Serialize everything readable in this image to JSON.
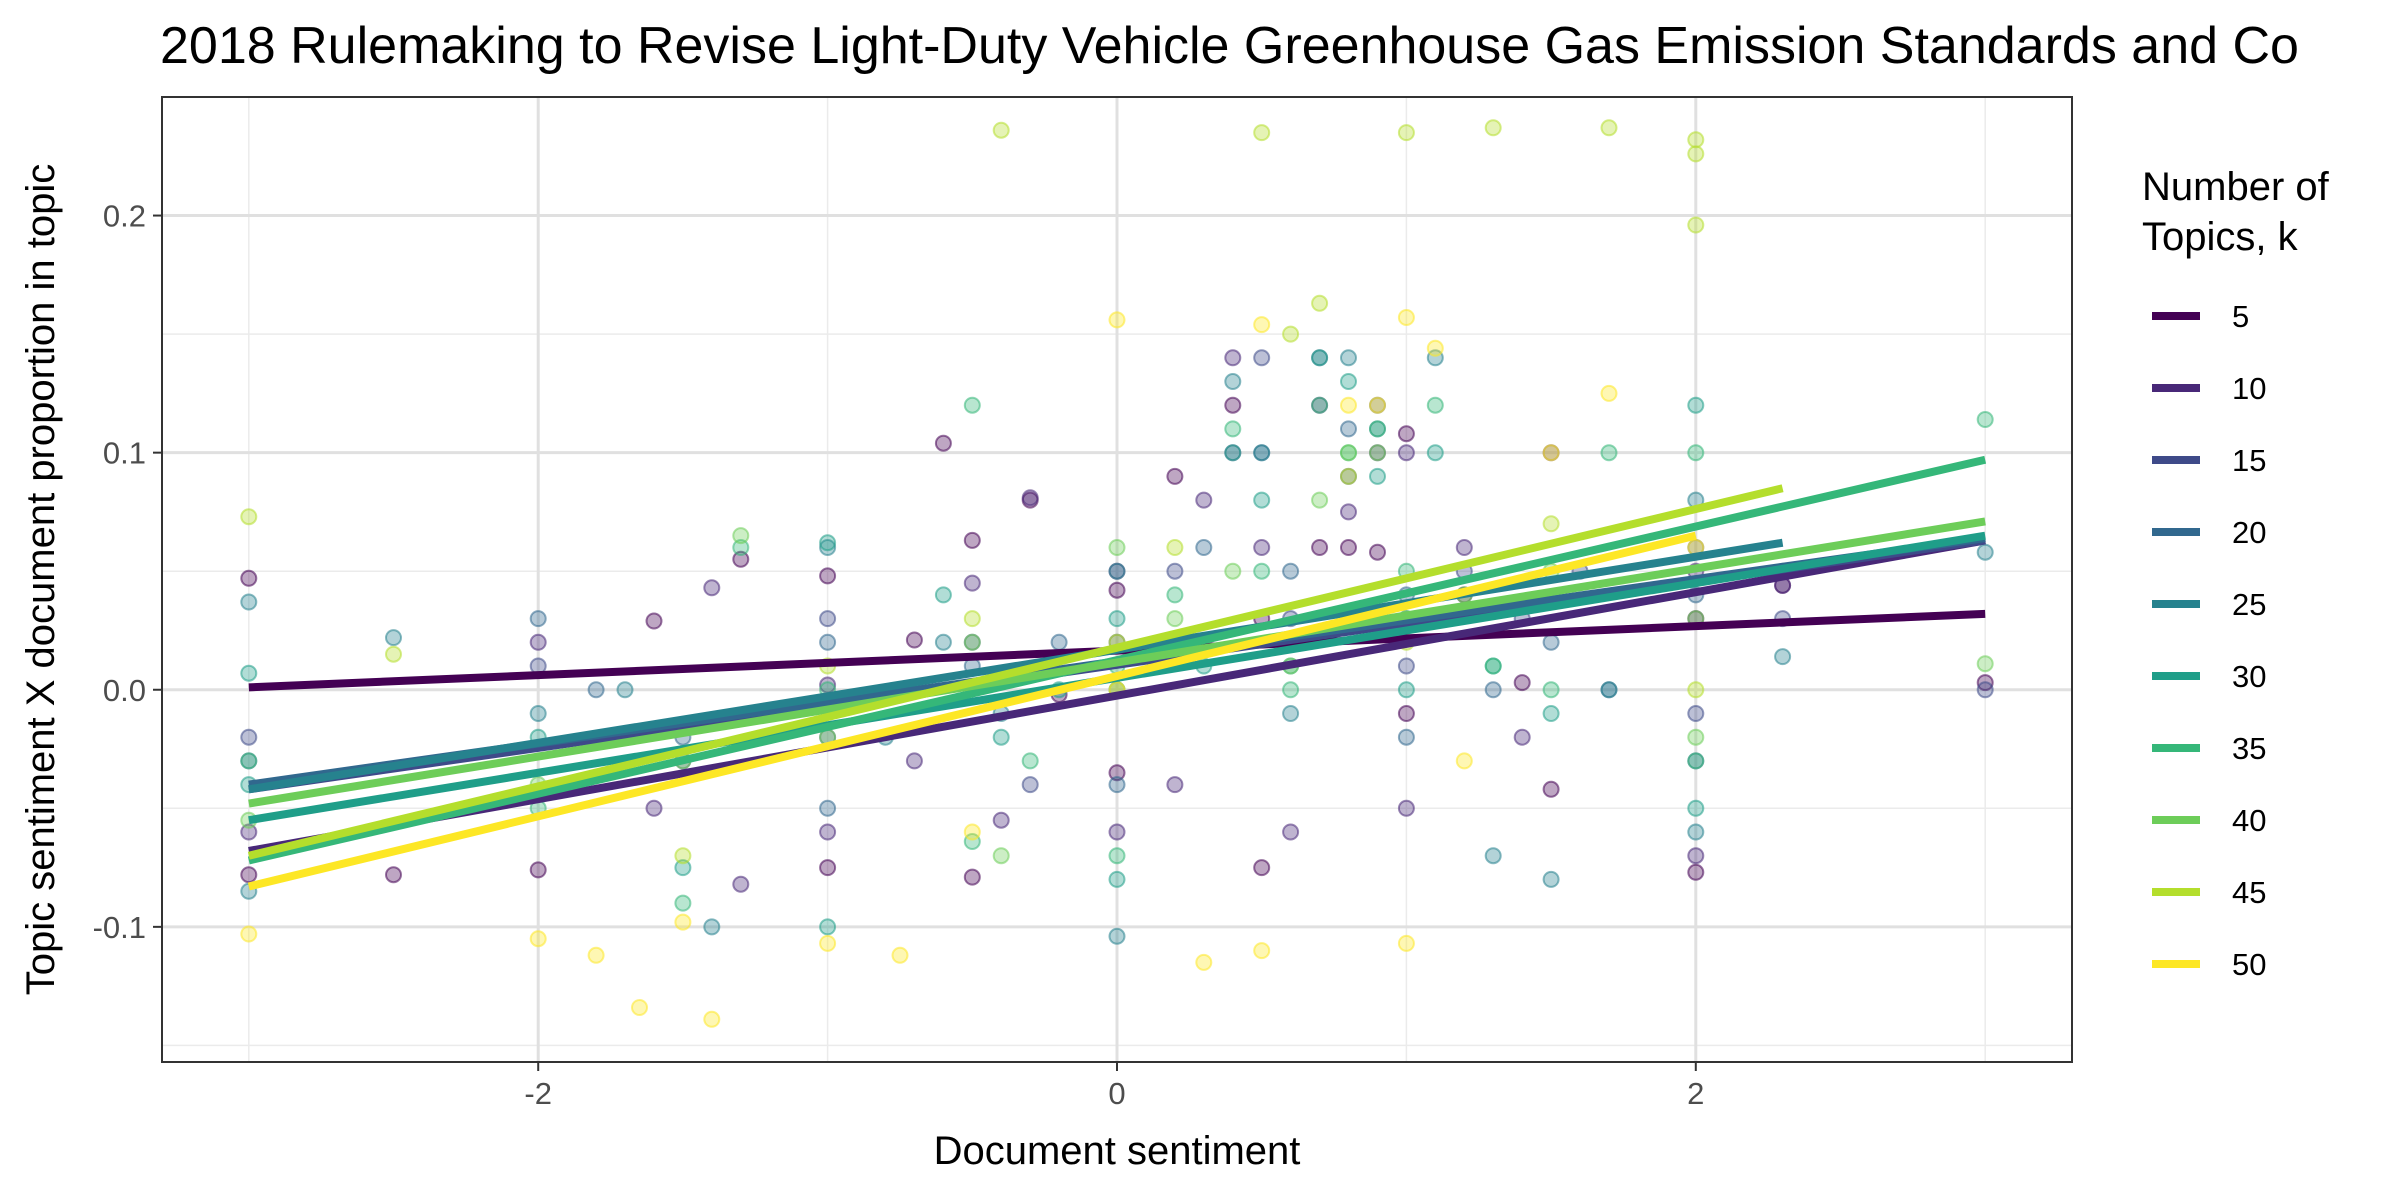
{
  "chart_data": {
    "type": "scatter",
    "title": "2018 Rulemaking to Revise Light-Duty Vehicle Greenhouse Gas Emission Standards and Co",
    "xlabel": "Document sentiment",
    "ylabel": "Topic sentiment X document proportion in topic",
    "xlim": [
      -3.3,
      3.3
    ],
    "ylim": [
      -0.157,
      0.25
    ],
    "x_ticks": [
      -2,
      0,
      2
    ],
    "x_tick_labels": [
      "-2",
      "0",
      "2"
    ],
    "y_ticks": [
      -0.1,
      0.0,
      0.1,
      0.2
    ],
    "y_tick_labels": [
      "-0.1",
      "0.0",
      "0.1",
      "0.2"
    ],
    "grid": true,
    "legend": {
      "title_lines": [
        "Number of",
        "Topics, k"
      ],
      "placement": "right"
    },
    "series": [
      {
        "name": "5",
        "color": "#440154",
        "fit": {
          "x": [
            -3.0,
            3.0
          ],
          "y": [
            0.001,
            0.032
          ]
        },
        "points": [
          [
            -3,
            0.047
          ],
          [
            -3,
            -0.078
          ],
          [
            -2.5,
            -0.078
          ],
          [
            -2,
            -0.076
          ],
          [
            -1.6,
            0.029
          ],
          [
            -1.3,
            0.055
          ],
          [
            -1,
            0.048
          ],
          [
            -1,
            -0.075
          ],
          [
            -0.7,
            0.021
          ],
          [
            -0.6,
            0.104
          ],
          [
            -0.5,
            0.063
          ],
          [
            -0.5,
            -0.079
          ],
          [
            -0.3,
            0.08
          ],
          [
            -0.2,
            -0.002
          ],
          [
            0,
            0.042
          ],
          [
            0,
            -0.035
          ],
          [
            0.2,
            0.09
          ],
          [
            0.4,
            0.12
          ],
          [
            0.5,
            0.03
          ],
          [
            0.5,
            -0.075
          ],
          [
            0.7,
            0.06
          ],
          [
            0.8,
            0.06
          ],
          [
            0.9,
            0.058
          ],
          [
            1,
            0.108
          ],
          [
            1,
            -0.01
          ],
          [
            1.2,
            0.04
          ],
          [
            1.4,
            0.003
          ],
          [
            1.5,
            -0.042
          ],
          [
            2,
            0.03
          ],
          [
            2,
            -0.077
          ],
          [
            2.3,
            0.044
          ],
          [
            3,
            0.003
          ]
        ]
      },
      {
        "name": "10",
        "color": "#482878",
        "fit": {
          "x": [
            -3.0,
            3.0
          ],
          "y": [
            -0.068,
            0.063
          ]
        },
        "points": [
          [
            -3,
            -0.06
          ],
          [
            -2,
            0.02
          ],
          [
            -1.6,
            -0.05
          ],
          [
            -1.4,
            0.043
          ],
          [
            -1.3,
            -0.082
          ],
          [
            -1,
            0.002
          ],
          [
            -1,
            -0.06
          ],
          [
            -0.7,
            -0.03
          ],
          [
            -0.5,
            0.045
          ],
          [
            -0.4,
            -0.055
          ],
          [
            -0.3,
            0.081
          ],
          [
            0,
            0.05
          ],
          [
            0,
            -0.06
          ],
          [
            0.2,
            -0.04
          ],
          [
            0.3,
            0.08
          ],
          [
            0.4,
            0.14
          ],
          [
            0.5,
            0.06
          ],
          [
            0.6,
            -0.06
          ],
          [
            0.7,
            0.12
          ],
          [
            0.8,
            0.075
          ],
          [
            0.9,
            0.1
          ],
          [
            1,
            0.1
          ],
          [
            1,
            -0.05
          ],
          [
            1.2,
            0.06
          ],
          [
            1.4,
            -0.02
          ],
          [
            1.5,
            0.1
          ],
          [
            2,
            0.05
          ],
          [
            2,
            -0.07
          ],
          [
            2.3,
            0.044
          ]
        ]
      },
      {
        "name": "15",
        "color": "#3E4A89",
        "fit": {
          "x": [
            -3.0,
            3.0
          ],
          "y": [
            -0.042,
            0.063
          ]
        },
        "points": [
          [
            -3,
            -0.02
          ],
          [
            -2,
            0.01
          ],
          [
            -1.5,
            -0.03
          ],
          [
            -1,
            0.03
          ],
          [
            -1,
            -0.02
          ],
          [
            -0.5,
            0.02
          ],
          [
            -0.3,
            -0.04
          ],
          [
            0,
            0.02
          ],
          [
            0.2,
            0.05
          ],
          [
            0.4,
            0.1
          ],
          [
            0.5,
            0.14
          ],
          [
            0.6,
            0.03
          ],
          [
            0.8,
            0.09
          ],
          [
            0.9,
            0.12
          ],
          [
            1,
            0.01
          ],
          [
            1.2,
            0.05
          ],
          [
            1.4,
            0.03
          ],
          [
            1.6,
            0.05
          ],
          [
            2,
            0.06
          ],
          [
            2,
            -0.01
          ],
          [
            2.3,
            0.03
          ],
          [
            3,
            0.0
          ]
        ]
      },
      {
        "name": "20",
        "color": "#31688E",
        "fit": {
          "x": [
            -3.0,
            3.0
          ],
          "y": [
            -0.04,
            0.064
          ]
        },
        "points": [
          [
            -3,
            -0.03
          ],
          [
            -2,
            0.03
          ],
          [
            -1.8,
            0.0
          ],
          [
            -1.5,
            -0.02
          ],
          [
            -1,
            0.02
          ],
          [
            -1,
            -0.05
          ],
          [
            -0.5,
            0.01
          ],
          [
            -0.2,
            0.02
          ],
          [
            0,
            0.0
          ],
          [
            0,
            -0.04
          ],
          [
            0.3,
            0.06
          ],
          [
            0.5,
            0.1
          ],
          [
            0.6,
            0.05
          ],
          [
            0.7,
            0.14
          ],
          [
            0.8,
            0.11
          ],
          [
            1,
            0.04
          ],
          [
            1,
            -0.02
          ],
          [
            1.3,
            0.0
          ],
          [
            1.5,
            0.02
          ],
          [
            1.7,
            0.0
          ],
          [
            2,
            0.04
          ],
          [
            2,
            -0.03
          ],
          [
            2.3,
            0.05
          ]
        ]
      },
      {
        "name": "25",
        "color": "#26828E",
        "fit": {
          "x": [
            -3.0,
            2.3
          ],
          "y": [
            -0.042,
            0.062
          ]
        },
        "points": [
          [
            -3,
            0.037
          ],
          [
            -3,
            -0.085
          ],
          [
            -2.5,
            0.022
          ],
          [
            -2,
            -0.01
          ],
          [
            -1.7,
            0.0
          ],
          [
            -1.4,
            -0.1
          ],
          [
            -1,
            0.06
          ],
          [
            -0.8,
            -0.02
          ],
          [
            -0.6,
            0.02
          ],
          [
            -0.4,
            -0.01
          ],
          [
            0,
            0.05
          ],
          [
            0,
            -0.104
          ],
          [
            0.2,
            0.02
          ],
          [
            0.4,
            0.13
          ],
          [
            0.5,
            0.1
          ],
          [
            0.6,
            -0.01
          ],
          [
            0.8,
            0.14
          ],
          [
            0.9,
            0.11
          ],
          [
            1,
            0.03
          ],
          [
            1.1,
            0.14
          ],
          [
            1.3,
            -0.07
          ],
          [
            1.5,
            -0.08
          ],
          [
            1.7,
            0.0
          ],
          [
            2,
            0.08
          ],
          [
            2,
            -0.06
          ],
          [
            2.3,
            0.014
          ],
          [
            3,
            0.058
          ]
        ]
      },
      {
        "name": "30",
        "color": "#1F9E89",
        "fit": {
          "x": [
            -3.0,
            3.0
          ],
          "y": [
            -0.055,
            0.065
          ]
        },
        "points": [
          [
            -3,
            0.007
          ],
          [
            -3,
            -0.04
          ],
          [
            -2,
            -0.02
          ],
          [
            -1.5,
            -0.075
          ],
          [
            -1,
            0.062
          ],
          [
            -1,
            -0.1
          ],
          [
            -0.6,
            0.04
          ],
          [
            -0.4,
            -0.02
          ],
          [
            -0.2,
            0.0
          ],
          [
            0,
            0.03
          ],
          [
            0,
            -0.08
          ],
          [
            0.3,
            0.01
          ],
          [
            0.4,
            0.1
          ],
          [
            0.5,
            0.08
          ],
          [
            0.6,
            0.01
          ],
          [
            0.7,
            0.14
          ],
          [
            0.8,
            0.13
          ],
          [
            0.9,
            0.09
          ],
          [
            1,
            0.0
          ],
          [
            1.1,
            0.1
          ],
          [
            1.3,
            0.01
          ],
          [
            1.5,
            -0.01
          ],
          [
            2,
            0.12
          ],
          [
            2,
            -0.05
          ]
        ]
      },
      {
        "name": "35",
        "color": "#35B779",
        "fit": {
          "x": [
            -3.0,
            3.0
          ],
          "y": [
            -0.072,
            0.097
          ]
        },
        "points": [
          [
            -3,
            -0.03
          ],
          [
            -2,
            -0.05
          ],
          [
            -1.5,
            -0.09
          ],
          [
            -1.3,
            0.06
          ],
          [
            -1,
            0.0
          ],
          [
            -0.5,
            -0.064
          ],
          [
            -0.5,
            0.12
          ],
          [
            -0.3,
            -0.03
          ],
          [
            0,
            0.01
          ],
          [
            0,
            -0.07
          ],
          [
            0.2,
            0.04
          ],
          [
            0.4,
            0.11
          ],
          [
            0.5,
            0.05
          ],
          [
            0.6,
            0.0
          ],
          [
            0.7,
            0.12
          ],
          [
            0.8,
            0.1
          ],
          [
            0.9,
            0.11
          ],
          [
            1,
            0.05
          ],
          [
            1.1,
            0.12
          ],
          [
            1.3,
            0.01
          ],
          [
            1.5,
            0.0
          ],
          [
            1.7,
            0.1
          ],
          [
            2,
            0.1
          ],
          [
            2,
            -0.03
          ],
          [
            3,
            0.114
          ]
        ]
      },
      {
        "name": "40",
        "color": "#6DCD59",
        "fit": {
          "x": [
            -3.0,
            3.0
          ],
          "y": [
            -0.048,
            0.071
          ]
        },
        "points": [
          [
            -3,
            -0.055
          ],
          [
            -2,
            -0.04
          ],
          [
            -1.5,
            -0.03
          ],
          [
            -1.3,
            0.065
          ],
          [
            -1,
            -0.02
          ],
          [
            -0.5,
            0.02
          ],
          [
            -0.4,
            -0.07
          ],
          [
            0,
            0.0
          ],
          [
            0,
            0.06
          ],
          [
            0.2,
            0.03
          ],
          [
            0.4,
            0.05
          ],
          [
            0.6,
            0.01
          ],
          [
            0.7,
            0.08
          ],
          [
            0.8,
            0.1
          ],
          [
            0.9,
            0.1
          ],
          [
            1,
            0.03
          ],
          [
            1.2,
            0.04
          ],
          [
            1.5,
            0.05
          ],
          [
            2,
            0.03
          ],
          [
            2,
            -0.02
          ],
          [
            3,
            0.011
          ]
        ]
      },
      {
        "name": "45",
        "color": "#B4DE2C",
        "fit": {
          "x": [
            -3.0,
            2.3
          ],
          "y": [
            -0.07,
            0.085
          ]
        },
        "points": [
          [
            -3,
            0.073
          ],
          [
            -2.5,
            0.015
          ],
          [
            -1.5,
            -0.07
          ],
          [
            -1,
            0.01
          ],
          [
            -0.5,
            0.03
          ],
          [
            -0.4,
            0.236
          ],
          [
            0,
            0.02
          ],
          [
            0.2,
            0.06
          ],
          [
            0.5,
            0.235
          ],
          [
            0.6,
            0.15
          ],
          [
            0.7,
            0.163
          ],
          [
            0.8,
            0.09
          ],
          [
            1,
            0.235
          ],
          [
            1,
            0.02
          ],
          [
            1.3,
            0.237
          ],
          [
            1.5,
            0.07
          ],
          [
            1.7,
            0.237
          ],
          [
            2,
            0.226
          ],
          [
            2,
            0.196
          ],
          [
            2,
            0.232
          ],
          [
            2,
            0.0
          ]
        ]
      },
      {
        "name": "50",
        "color": "#FDE725",
        "fit": {
          "x": [
            -3.0,
            2.0
          ],
          "y": [
            -0.083,
            0.065
          ]
        },
        "points": [
          [
            -3,
            -0.103
          ],
          [
            -2,
            -0.105
          ],
          [
            -1.8,
            -0.112
          ],
          [
            -1.65,
            -0.134
          ],
          [
            -1.5,
            -0.098
          ],
          [
            -1.4,
            -0.139
          ],
          [
            -1,
            -0.107
          ],
          [
            -0.75,
            -0.112
          ],
          [
            -0.5,
            -0.06
          ],
          [
            0,
            0.0
          ],
          [
            0,
            0.156
          ],
          [
            0.3,
            -0.115
          ],
          [
            0.5,
            -0.11
          ],
          [
            0.5,
            0.154
          ],
          [
            0.8,
            0.12
          ],
          [
            0.9,
            0.12
          ],
          [
            1,
            0.157
          ],
          [
            1,
            -0.107
          ],
          [
            1.1,
            0.144
          ],
          [
            1.2,
            -0.03
          ],
          [
            1.5,
            0.1
          ],
          [
            1.7,
            0.125
          ],
          [
            2,
            0.06
          ]
        ]
      }
    ]
  }
}
